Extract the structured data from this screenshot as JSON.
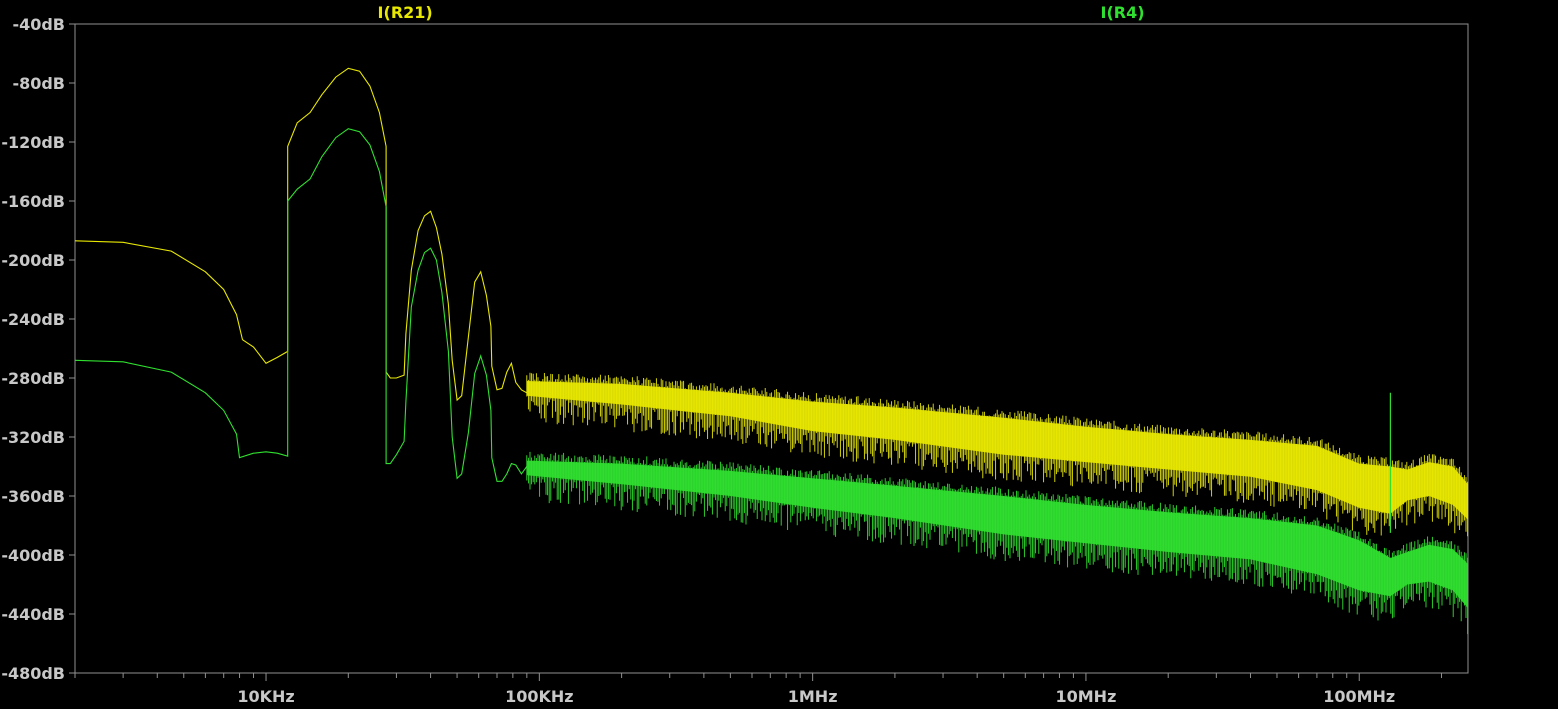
{
  "chart_data": {
    "type": "line",
    "title": "",
    "xlabel": "",
    "ylabel": "",
    "x_scale": "log",
    "x_unit": "Hz",
    "xlim": [
      2000,
      250000000
    ],
    "ylim": [
      -480,
      -40
    ],
    "y_unit": "dB",
    "background": "#000000",
    "grid": false,
    "x_ticks": [
      {
        "value": 10000,
        "label": "10KHz"
      },
      {
        "value": 100000,
        "label": "100KHz"
      },
      {
        "value": 1000000,
        "label": "1MHz"
      },
      {
        "value": 10000000,
        "label": "10MHz"
      },
      {
        "value": 100000000,
        "label": "100MHz"
      }
    ],
    "y_ticks": [
      {
        "value": -40,
        "label": "-40dB"
      },
      {
        "value": -80,
        "label": "-80dB"
      },
      {
        "value": -120,
        "label": "-120dB"
      },
      {
        "value": -160,
        "label": "-160dB"
      },
      {
        "value": -200,
        "label": "-200dB"
      },
      {
        "value": -240,
        "label": "-240dB"
      },
      {
        "value": -280,
        "label": "-280dB"
      },
      {
        "value": -320,
        "label": "-320dB"
      },
      {
        "value": -360,
        "label": "-360dB"
      },
      {
        "value": -400,
        "label": "-400dB"
      },
      {
        "value": -440,
        "label": "-440dB"
      },
      {
        "value": -480,
        "label": "-480dB"
      }
    ],
    "series": [
      {
        "name": "I(R21)",
        "color": "#e8e800",
        "x": [
          2000,
          3000,
          4500,
          6000,
          7000,
          7800,
          8200,
          9000,
          10000,
          11000,
          12000,
          12001,
          13000,
          14500,
          16000,
          18000,
          20000,
          22000,
          24000,
          26000,
          27500,
          27501,
          28500,
          30000,
          32000,
          32500,
          34000,
          36000,
          38000,
          40000,
          42000,
          44000,
          46500,
          48000,
          50000,
          52000,
          55000,
          58000,
          61000,
          64000,
          66500,
          67000,
          70000,
          73000,
          76000,
          79000,
          82000,
          86000,
          90000
        ],
        "y": [
          -187,
          -188,
          -194,
          -208,
          -220,
          -237,
          -254,
          -259,
          -270,
          -266,
          -262,
          -123,
          -107,
          -100,
          -88,
          -76,
          -70,
          -72,
          -82,
          -100,
          -123,
          -276,
          -280,
          -280,
          -278,
          -250,
          -207,
          -180,
          -170,
          -167,
          -178,
          -196,
          -230,
          -268,
          -295,
          -292,
          -252,
          -215,
          -208,
          -224,
          -245,
          -272,
          -288,
          -287,
          -276,
          -270,
          -283,
          -288,
          -290
        ]
      },
      {
        "name": "I(R4)",
        "color": "#30e030",
        "x": [
          2000,
          3000,
          4500,
          6000,
          7000,
          7800,
          8000,
          9000,
          10000,
          11000,
          12000,
          12001,
          13000,
          14500,
          16000,
          18000,
          20000,
          22000,
          24000,
          26000,
          27500,
          27501,
          28500,
          30000,
          32000,
          32500,
          34000,
          36000,
          38000,
          40000,
          42000,
          44000,
          46500,
          48000,
          50000,
          52000,
          55000,
          58000,
          61000,
          64000,
          66500,
          67000,
          70000,
          73000,
          76000,
          79000,
          82000,
          86000,
          90000
        ],
        "y": [
          -268,
          -269,
          -276,
          -290,
          -302,
          -318,
          -334,
          -331,
          -330,
          -331,
          -333,
          -160,
          -152,
          -145,
          -130,
          -117,
          -111,
          -113,
          -122,
          -140,
          -164,
          -338,
          -338,
          -332,
          -323,
          -296,
          -232,
          -207,
          -195,
          -192,
          -200,
          -222,
          -262,
          -320,
          -348,
          -345,
          -317,
          -277,
          -265,
          -278,
          -302,
          -334,
          -350,
          -350,
          -345,
          -338,
          -339,
          -345,
          -340
        ]
      }
    ],
    "noise_bands": [
      {
        "series": "I(R21)",
        "x": [
          90000,
          200000,
          500000,
          1000000,
          2000000,
          5000000,
          10000000,
          20000000,
          40000000,
          70000000,
          100000000,
          130000000,
          150000000,
          180000000,
          220000000,
          250000000
        ],
        "upper": [
          -282,
          -284,
          -290,
          -296,
          -300,
          -307,
          -313,
          -318,
          -322,
          -326,
          -338,
          -340,
          -342,
          -337,
          -340,
          -352
        ],
        "lower": [
          -292,
          -298,
          -306,
          -316,
          -322,
          -332,
          -337,
          -342,
          -347,
          -356,
          -368,
          -372,
          -363,
          -360,
          -366,
          -376
        ]
      },
      {
        "series": "I(R4)",
        "x": [
          90000,
          200000,
          500000,
          1000000,
          2000000,
          5000000,
          10000000,
          20000000,
          40000000,
          70000000,
          100000000,
          130000000,
          150000000,
          180000000,
          220000000,
          250000000
        ],
        "upper": [
          -336,
          -338,
          -343,
          -348,
          -353,
          -360,
          -366,
          -371,
          -375,
          -380,
          -390,
          -402,
          -398,
          -393,
          -396,
          -406
        ],
        "lower": [
          -346,
          -352,
          -360,
          -368,
          -375,
          -386,
          -392,
          -398,
          -403,
          -413,
          -424,
          -428,
          -420,
          -418,
          -424,
          -436
        ]
      }
    ],
    "spur": {
      "x": 130000000,
      "top": -290,
      "bottom": -385
    }
  },
  "colors": {
    "background": "#000000",
    "axis": "#909090",
    "tick_text": "#c8c8c8"
  }
}
